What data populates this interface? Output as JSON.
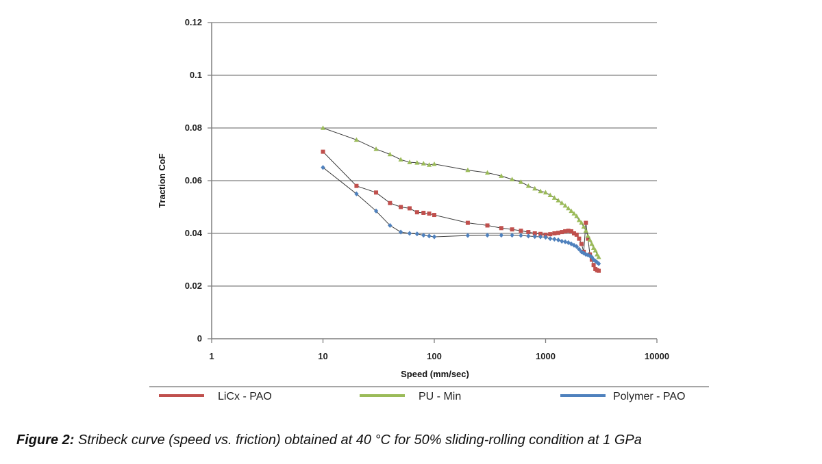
{
  "chart_data": {
    "type": "line",
    "title": "",
    "xlabel": "Speed (mm/sec)",
    "ylabel": "Traction CoF",
    "x_scale": "log",
    "xlim": [
      1,
      10000
    ],
    "ylim": [
      0,
      0.12
    ],
    "x_ticks": [
      "1",
      "10",
      "100",
      "1000",
      "10000"
    ],
    "y_ticks": [
      "0",
      "0.02",
      "0.04",
      "0.06",
      "0.08",
      "0.1",
      "0.12"
    ],
    "grid": "horizontal",
    "legend_position": "bottom",
    "series": [
      {
        "name": "LiCx - PAO",
        "color": "#c0504d",
        "marker": "square",
        "points": [
          [
            10,
            0.071
          ],
          [
            20,
            0.058
          ],
          [
            30,
            0.0555
          ],
          [
            40,
            0.0515
          ],
          [
            50,
            0.05
          ],
          [
            60,
            0.0495
          ],
          [
            70,
            0.048
          ],
          [
            80,
            0.0478
          ],
          [
            90,
            0.0475
          ],
          [
            100,
            0.047
          ],
          [
            200,
            0.044
          ],
          [
            300,
            0.043
          ],
          [
            400,
            0.042
          ],
          [
            500,
            0.0415
          ],
          [
            600,
            0.041
          ],
          [
            700,
            0.0405
          ],
          [
            800,
            0.04
          ],
          [
            900,
            0.0398
          ],
          [
            1000,
            0.0395
          ],
          [
            1100,
            0.0397
          ],
          [
            1200,
            0.04
          ],
          [
            1300,
            0.0402
          ],
          [
            1400,
            0.0405
          ],
          [
            1500,
            0.0408
          ],
          [
            1600,
            0.041
          ],
          [
            1700,
            0.0408
          ],
          [
            1800,
            0.04
          ],
          [
            1900,
            0.0395
          ],
          [
            2000,
            0.038
          ],
          [
            2100,
            0.036
          ],
          [
            2200,
            0.033
          ],
          [
            2300,
            0.044
          ],
          [
            2400,
            0.038
          ],
          [
            2500,
            0.032
          ],
          [
            2600,
            0.03
          ],
          [
            2700,
            0.028
          ],
          [
            2800,
            0.0265
          ],
          [
            2900,
            0.026
          ],
          [
            3000,
            0.0258
          ]
        ]
      },
      {
        "name": "PU - Min",
        "color": "#9bbb59",
        "marker": "triangle",
        "points": [
          [
            10,
            0.08
          ],
          [
            20,
            0.0755
          ],
          [
            30,
            0.072
          ],
          [
            40,
            0.07
          ],
          [
            50,
            0.068
          ],
          [
            60,
            0.067
          ],
          [
            70,
            0.0668
          ],
          [
            80,
            0.0665
          ],
          [
            90,
            0.066
          ],
          [
            100,
            0.0663
          ],
          [
            200,
            0.064
          ],
          [
            300,
            0.063
          ],
          [
            400,
            0.0618
          ],
          [
            500,
            0.0605
          ],
          [
            600,
            0.0595
          ],
          [
            700,
            0.058
          ],
          [
            800,
            0.057
          ],
          [
            900,
            0.056
          ],
          [
            1000,
            0.0555
          ],
          [
            1100,
            0.0545
          ],
          [
            1200,
            0.0535
          ],
          [
            1300,
            0.0525
          ],
          [
            1400,
            0.0515
          ],
          [
            1500,
            0.0505
          ],
          [
            1600,
            0.0495
          ],
          [
            1700,
            0.0485
          ],
          [
            1800,
            0.0475
          ],
          [
            1900,
            0.0465
          ],
          [
            2000,
            0.045
          ],
          [
            2100,
            0.044
          ],
          [
            2200,
            0.0425
          ],
          [
            2300,
            0.041
          ],
          [
            2400,
            0.039
          ],
          [
            2500,
            0.0375
          ],
          [
            2600,
            0.036
          ],
          [
            2700,
            0.0345
          ],
          [
            2800,
            0.0335
          ],
          [
            2900,
            0.032
          ],
          [
            3000,
            0.031
          ]
        ]
      },
      {
        "name": "Polymer - PAO",
        "color": "#4f81bd",
        "marker": "diamond",
        "points": [
          [
            10,
            0.065
          ],
          [
            20,
            0.055
          ],
          [
            30,
            0.0485
          ],
          [
            40,
            0.043
          ],
          [
            50,
            0.0405
          ],
          [
            60,
            0.04
          ],
          [
            70,
            0.0398
          ],
          [
            80,
            0.0393
          ],
          [
            90,
            0.039
          ],
          [
            100,
            0.0387
          ],
          [
            200,
            0.0392
          ],
          [
            300,
            0.0393
          ],
          [
            400,
            0.0393
          ],
          [
            500,
            0.0393
          ],
          [
            600,
            0.0392
          ],
          [
            700,
            0.039
          ],
          [
            800,
            0.0388
          ],
          [
            900,
            0.0387
          ],
          [
            1000,
            0.0385
          ],
          [
            1100,
            0.038
          ],
          [
            1200,
            0.0378
          ],
          [
            1300,
            0.0375
          ],
          [
            1400,
            0.037
          ],
          [
            1500,
            0.0368
          ],
          [
            1600,
            0.0365
          ],
          [
            1700,
            0.036
          ],
          [
            1800,
            0.0355
          ],
          [
            1900,
            0.035
          ],
          [
            2000,
            0.034
          ],
          [
            2100,
            0.033
          ],
          [
            2200,
            0.0325
          ],
          [
            2300,
            0.032
          ],
          [
            2400,
            0.0318
          ],
          [
            2500,
            0.0315
          ],
          [
            2600,
            0.031
          ],
          [
            2700,
            0.03
          ],
          [
            2800,
            0.0295
          ],
          [
            2900,
            0.029
          ],
          [
            3000,
            0.0285
          ]
        ]
      }
    ]
  },
  "caption": {
    "label": "Figure 2:",
    "text": " Stribeck curve (speed vs. friction) obtained at 40 °C for 50% sliding-rolling condition at 1 GPa"
  }
}
